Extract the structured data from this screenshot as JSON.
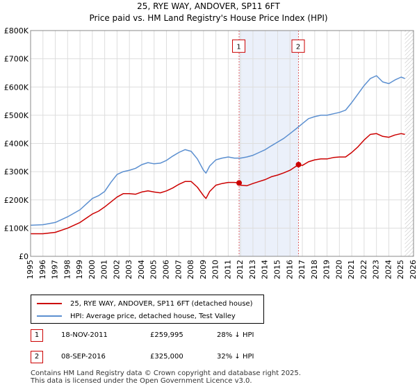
{
  "title_line1": "25, RYE WAY, ANDOVER, SP11 6FT",
  "title_line2": "Price paid vs. HM Land Registry's House Price Index (HPI)",
  "chart_data": {
    "type": "line",
    "ylim": [
      0,
      800000
    ],
    "xlim": [
      1995.0,
      2026.0
    ],
    "y_ticks": [
      0,
      100000,
      200000,
      300000,
      400000,
      500000,
      600000,
      700000,
      800000
    ],
    "y_tick_labels": [
      "£0",
      "£100K",
      "£200K",
      "£300K",
      "£400K",
      "£500K",
      "£600K",
      "£700K",
      "£800K"
    ],
    "x_tick_labels": [
      "1995",
      "1996",
      "1997",
      "1998",
      "1999",
      "2000",
      "2001",
      "2002",
      "2003",
      "2004",
      "2005",
      "2006",
      "2007",
      "2008",
      "2009",
      "2010",
      "2011",
      "2012",
      "2013",
      "2014",
      "2015",
      "2016",
      "2017",
      "2018",
      "2019",
      "2020",
      "2021",
      "2022",
      "2023",
      "2024",
      "2025",
      "2026"
    ],
    "series": [
      {
        "name": "25, RYE WAY, ANDOVER, SP11 6FT (detached house)",
        "color": "#cc0000",
        "x": [
          1995.0,
          1996.0,
          1997.0,
          1998.0,
          1999.0,
          2000.0,
          2000.5,
          2001.0,
          2002.0,
          2002.5,
          2003.0,
          2003.5,
          2004.0,
          2004.5,
          2005.0,
          2005.5,
          2006.0,
          2006.5,
          2007.0,
          2007.5,
          2008.0,
          2008.5,
          2009.0,
          2009.2,
          2009.5,
          2010.0,
          2010.5,
          2011.0,
          2011.5,
          2011.88,
          2012.0,
          2012.5,
          2013.0,
          2013.5,
          2014.0,
          2014.5,
          2015.0,
          2015.5,
          2016.0,
          2016.69,
          2017.0,
          2017.5,
          2018.0,
          2018.5,
          2019.0,
          2019.5,
          2020.0,
          2020.5,
          2021.0,
          2021.5,
          2022.0,
          2022.5,
          2023.0,
          2023.5,
          2024.0,
          2024.5,
          2025.0,
          2025.3
        ],
        "values": [
          80000,
          80000,
          85000,
          100000,
          120000,
          150000,
          160000,
          175000,
          210000,
          222000,
          222000,
          220000,
          228000,
          232000,
          228000,
          225000,
          232000,
          242000,
          255000,
          265000,
          265000,
          245000,
          215000,
          205000,
          230000,
          252000,
          258000,
          262000,
          262000,
          259995,
          252000,
          250000,
          258000,
          265000,
          272000,
          282000,
          288000,
          296000,
          305000,
          325000,
          322000,
          335000,
          342000,
          345000,
          345000,
          350000,
          352000,
          352000,
          368000,
          388000,
          412000,
          432000,
          435000,
          425000,
          422000,
          430000,
          435000,
          432000
        ]
      },
      {
        "name": "HPI: Average price, detached house, Test Valley",
        "color": "#5b8fd0",
        "x": [
          1995.0,
          1996.0,
          1997.0,
          1998.0,
          1999.0,
          2000.0,
          2000.5,
          2001.0,
          2001.5,
          2002.0,
          2002.5,
          2003.0,
          2003.5,
          2004.0,
          2004.5,
          2005.0,
          2005.5,
          2006.0,
          2006.5,
          2007.0,
          2007.5,
          2008.0,
          2008.5,
          2009.0,
          2009.2,
          2009.5,
          2010.0,
          2010.5,
          2011.0,
          2011.5,
          2012.0,
          2012.5,
          2013.0,
          2013.5,
          2014.0,
          2014.5,
          2015.0,
          2015.5,
          2016.0,
          2016.5,
          2017.0,
          2017.5,
          2018.0,
          2018.5,
          2019.0,
          2019.5,
          2020.0,
          2020.5,
          2021.0,
          2021.5,
          2022.0,
          2022.5,
          2023.0,
          2023.5,
          2024.0,
          2024.5,
          2025.0,
          2025.3
        ],
        "values": [
          110000,
          112000,
          120000,
          140000,
          165000,
          205000,
          215000,
          230000,
          262000,
          290000,
          300000,
          305000,
          312000,
          325000,
          332000,
          328000,
          330000,
          340000,
          355000,
          368000,
          378000,
          372000,
          345000,
          305000,
          295000,
          320000,
          342000,
          348000,
          352000,
          348000,
          348000,
          352000,
          358000,
          368000,
          378000,
          392000,
          405000,
          418000,
          435000,
          452000,
          470000,
          488000,
          495000,
          500000,
          500000,
          505000,
          510000,
          518000,
          545000,
          575000,
          605000,
          630000,
          640000,
          618000,
          612000,
          625000,
          635000,
          630000
        ]
      }
    ],
    "markers": [
      {
        "label": "1",
        "x": 2011.88,
        "value": 259995
      },
      {
        "label": "2",
        "x": 2016.69,
        "value": 325000
      }
    ]
  },
  "legend": [
    "25, RYE WAY, ANDOVER, SP11 6FT (detached house)",
    "HPI: Average price, detached house, Test Valley"
  ],
  "transactions": [
    {
      "num": "1",
      "date": "18-NOV-2011",
      "price": "£259,995",
      "hpi": "28% ↓ HPI"
    },
    {
      "num": "2",
      "date": "08-SEP-2016",
      "price": "£325,000",
      "hpi": "32% ↓ HPI"
    }
  ],
  "footer_line1": "Contains HM Land Registry data © Crown copyright and database right 2025.",
  "footer_line2": "This data is licensed under the Open Government Licence v3.0."
}
